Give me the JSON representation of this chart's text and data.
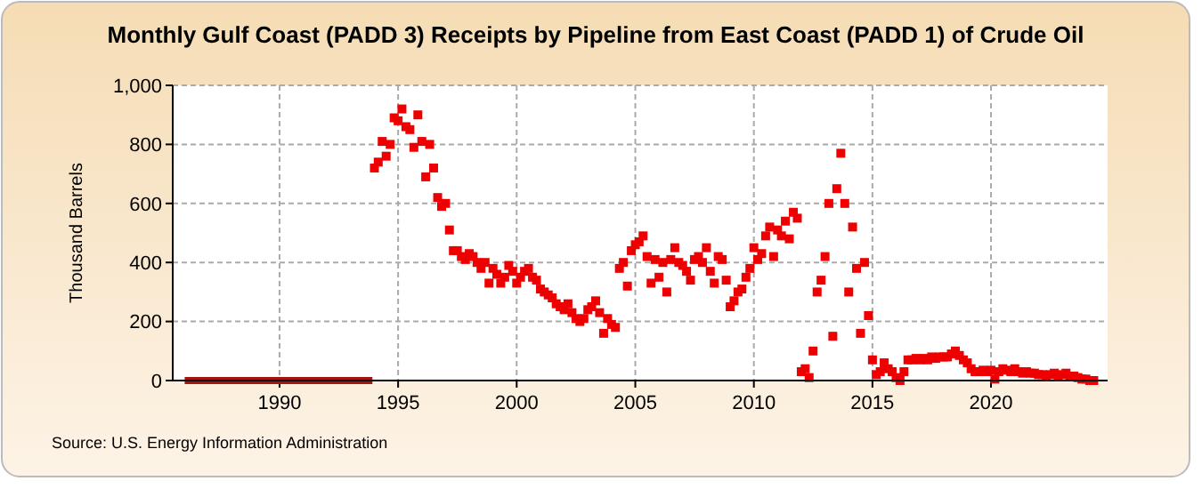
{
  "chart_data": {
    "type": "scatter",
    "title": "Monthly Gulf Coast (PADD 3) Receipts by Pipeline from East Coast (PADD 1) of Crude Oil",
    "ylabel": "Thousand Barrels",
    "annotations": [
      "Source: U.S. Energy Information Administration"
    ],
    "xlim": [
      "1985-07",
      "2024-12"
    ],
    "xticks": [
      {
        "value": "1990",
        "label": "1990"
      },
      {
        "value": "1995",
        "label": "1995"
      },
      {
        "value": "2000",
        "label": "2000"
      },
      {
        "value": "2005",
        "label": "2005"
      },
      {
        "value": "2010",
        "label": "2010"
      },
      {
        "value": "2015",
        "label": "2015"
      },
      {
        "value": "2020",
        "label": "2020"
      }
    ],
    "ylim": [
      0,
      1000
    ],
    "yticks": [
      0,
      200,
      400,
      600,
      800,
      {
        "value": 1000,
        "label": "1,000"
      }
    ],
    "grid": true,
    "series": [
      {
        "type": "line",
        "color": "#aa1111",
        "x": [
          "1986-01",
          "1993-12"
        ],
        "values": [
          0,
          0
        ]
      },
      {
        "marker": "square",
        "color": "#ee0000",
        "x": [
          "1994-01",
          "1994-03",
          "1994-05",
          "1994-07",
          "1994-09",
          "1994-11",
          "1995-01",
          "1995-03",
          "1995-05",
          "1995-07",
          "1995-09",
          "1995-11",
          "1996-01",
          "1996-03",
          "1996-05",
          "1996-07",
          "1996-09",
          "1996-11",
          "1997-01",
          "1997-03",
          "1997-05",
          "1997-07",
          "1997-09",
          "1997-11",
          "1998-01",
          "1998-03",
          "1998-05",
          "1998-07",
          "1998-09",
          "1998-11",
          "1999-01",
          "1999-03",
          "1999-05",
          "1999-07",
          "1999-09",
          "1999-11",
          "2000-01",
          "2000-03",
          "2000-05",
          "2000-07",
          "2000-09",
          "2000-11",
          "2001-01",
          "2001-03",
          "2001-05",
          "2001-07",
          "2001-09",
          "2001-11",
          "2002-01",
          "2002-03",
          "2002-05",
          "2002-07",
          "2002-09",
          "2002-11",
          "2003-01",
          "2003-03",
          "2003-05",
          "2003-07",
          "2003-09",
          "2003-11",
          "2004-01",
          "2004-03",
          "2004-05",
          "2004-07",
          "2004-09",
          "2004-11",
          "2005-01",
          "2005-03",
          "2005-05",
          "2005-07",
          "2005-09",
          "2005-11",
          "2006-01",
          "2006-03",
          "2006-05",
          "2006-07",
          "2006-09",
          "2006-11",
          "2007-01",
          "2007-03",
          "2007-05",
          "2007-07",
          "2007-09",
          "2007-11",
          "2008-01",
          "2008-03",
          "2008-05",
          "2008-07",
          "2008-09",
          "2008-11",
          "2009-01",
          "2009-03",
          "2009-05",
          "2009-07",
          "2009-09",
          "2009-11",
          "2010-01",
          "2010-03",
          "2010-05",
          "2010-07",
          "2010-09",
          "2010-11",
          "2011-01",
          "2011-03",
          "2011-05",
          "2011-07",
          "2011-09",
          "2011-11",
          "2012-01",
          "2012-03",
          "2012-05",
          "2012-07",
          "2012-09",
          "2012-11",
          "2013-01",
          "2013-03",
          "2013-05",
          "2013-07",
          "2013-09",
          "2013-11",
          "2014-01",
          "2014-03",
          "2014-05",
          "2014-07",
          "2014-09",
          "2014-11",
          "2015-01",
          "2015-03",
          "2015-05",
          "2015-07",
          "2015-09",
          "2015-11",
          "2016-01",
          "2016-03",
          "2016-05",
          "2016-07",
          "2016-09",
          "2016-11",
          "2017-01",
          "2017-03",
          "2017-05",
          "2017-07",
          "2017-09",
          "2017-11",
          "2018-01",
          "2018-03",
          "2018-05",
          "2018-07",
          "2018-09",
          "2018-11",
          "2019-01",
          "2019-03",
          "2019-05",
          "2019-07",
          "2019-09",
          "2019-11",
          "2020-01",
          "2020-03",
          "2020-05",
          "2020-07",
          "2020-09",
          "2020-11",
          "2021-01",
          "2021-03",
          "2021-05",
          "2021-07",
          "2021-09",
          "2021-11",
          "2022-01",
          "2022-03",
          "2022-05",
          "2022-07",
          "2022-09",
          "2022-11",
          "2023-01",
          "2023-03",
          "2023-05",
          "2023-07",
          "2023-09",
          "2023-11",
          "2024-01",
          "2024-03",
          "2024-05"
        ],
        "values": [
          720,
          740,
          810,
          760,
          800,
          890,
          880,
          920,
          860,
          850,
          790,
          900,
          810,
          690,
          800,
          720,
          620,
          590,
          600,
          510,
          440,
          440,
          420,
          410,
          430,
          420,
          400,
          380,
          400,
          330,
          380,
          360,
          330,
          350,
          390,
          370,
          330,
          350,
          370,
          380,
          350,
          340,
          310,
          300,
          290,
          280,
          260,
          250,
          240,
          260,
          230,
          210,
          200,
          210,
          240,
          250,
          270,
          230,
          160,
          210,
          190,
          180,
          380,
          400,
          320,
          440,
          460,
          470,
          490,
          420,
          330,
          410,
          350,
          400,
          300,
          410,
          450,
          400,
          390,
          370,
          340,
          410,
          420,
          400,
          450,
          370,
          330,
          420,
          410,
          340,
          250,
          270,
          300,
          310,
          350,
          380,
          450,
          410,
          430,
          490,
          520,
          420,
          510,
          490,
          540,
          480,
          570,
          550,
          30,
          40,
          10,
          100,
          300,
          340,
          420,
          600,
          150,
          650,
          770,
          600,
          300,
          520,
          380,
          160,
          400,
          220,
          70,
          20,
          30,
          60,
          40,
          30,
          10,
          0,
          30,
          70,
          70,
          75,
          70,
          75,
          70,
          80,
          75,
          80,
          80,
          80,
          90,
          100,
          85,
          70,
          60,
          40,
          30,
          30,
          35,
          30,
          35,
          5,
          30,
          40,
          35,
          30,
          40,
          30,
          25,
          30,
          25,
          25,
          20,
          20,
          15,
          20,
          25,
          15,
          20,
          25,
          15,
          15,
          10,
          5,
          5,
          0,
          0
        ]
      }
    ]
  }
}
